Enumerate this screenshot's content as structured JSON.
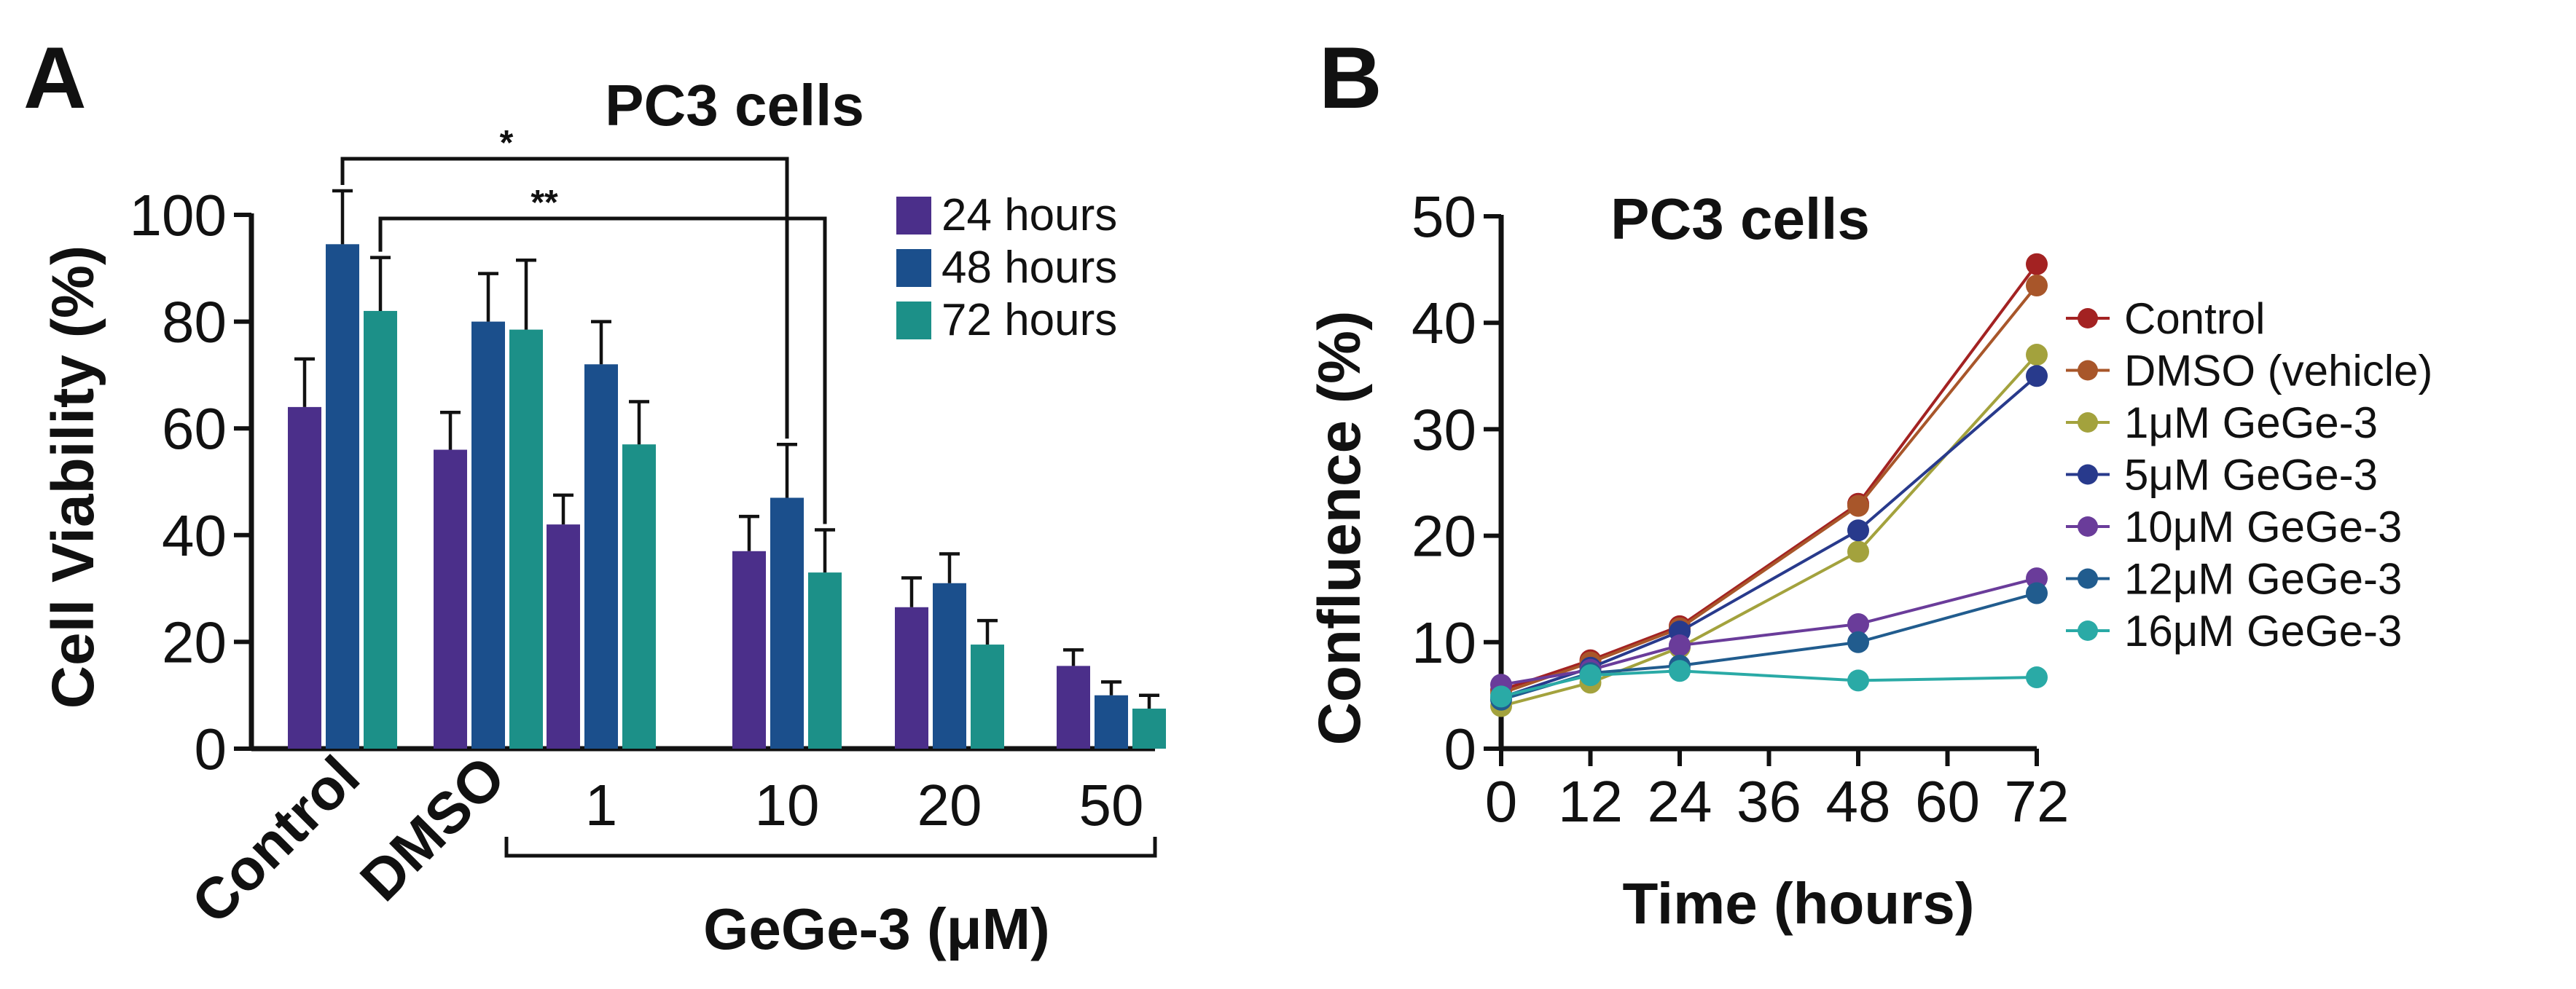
{
  "colors": {
    "h24": "#4B2F8A",
    "h48": "#1B4F8C",
    "h72": "#1C9088",
    "control": "#A32222",
    "dmso": "#A8562A",
    "c1": "#A3A23D",
    "c5": "#283A8C",
    "c10": "#6A3C9A",
    "c12": "#215C8E",
    "c16": "#2AAAA6"
  },
  "chart_data": [
    {
      "type": "bar",
      "panel_label": "A",
      "title": "PC3 cells",
      "xlabel": "GeGe-3 (μM)",
      "ylabel": "Cell Viability (%)",
      "ylim": [
        0,
        100
      ],
      "yticks": [
        "0",
        "20",
        "40",
        "60",
        "80",
        "100"
      ],
      "categories": [
        "Control",
        "DMSO",
        "1",
        "10",
        "20",
        "50"
      ],
      "legend_position": "top-right",
      "series": [
        {
          "name": "24 hours",
          "values": [
            64,
            56,
            42,
            37,
            26.5,
            15.5
          ],
          "errors": [
            9,
            7,
            5.5,
            6.5,
            5.5,
            3
          ],
          "color_key": "h24"
        },
        {
          "name": "48 hours",
          "values": [
            94.5,
            80,
            72,
            47,
            31,
            10
          ],
          "errors": [
            10,
            9,
            8,
            10,
            5.5,
            2.5
          ],
          "color_key": "h48"
        },
        {
          "name": "72 hours",
          "values": [
            82,
            78.5,
            57,
            33,
            19.5,
            7.5
          ],
          "errors": [
            10,
            13,
            8,
            8,
            4.5,
            2.5
          ],
          "color_key": "h72"
        }
      ],
      "significance": [
        {
          "label": "*",
          "from_category": "Control",
          "from_series": "48 hours",
          "to_category": "10",
          "to_series": "48 hours"
        },
        {
          "label": "**",
          "from_category": "Control",
          "from_series": "72 hours",
          "to_category": "10",
          "to_series": "72 hours"
        }
      ]
    },
    {
      "type": "line",
      "panel_label": "B",
      "title": "PC3 cells",
      "xlabel": "Time (hours)",
      "ylabel": "Confluence (%)",
      "xlim": [
        0,
        72
      ],
      "ylim": [
        0,
        50
      ],
      "xticks": [
        "0",
        "12",
        "24",
        "36",
        "48",
        "60",
        "72"
      ],
      "yticks": [
        "0",
        "10",
        "20",
        "30",
        "40",
        "50"
      ],
      "x": [
        0,
        12,
        24,
        48,
        72
      ],
      "legend_position": "right",
      "series": [
        {
          "name": "Control",
          "values": [
            5.5,
            8.3,
            11.5,
            23,
            45.5
          ],
          "color_key": "control"
        },
        {
          "name": "DMSO (vehicle)",
          "values": [
            5.2,
            8.1,
            11.3,
            22.8,
            43.5
          ],
          "color_key": "dmso"
        },
        {
          "name": "1μM GeGe-3",
          "values": [
            4,
            6.2,
            9.5,
            18.5,
            37
          ],
          "color_key": "c1"
        },
        {
          "name": "5μM GeGe-3",
          "values": [
            4.8,
            7.6,
            11,
            20.5,
            35
          ],
          "color_key": "c5"
        },
        {
          "name": "10μM GeGe-3",
          "values": [
            6,
            7.4,
            9.7,
            11.7,
            16
          ],
          "color_key": "c10"
        },
        {
          "name": "12μM GeGe-3",
          "values": [
            4.6,
            7.1,
            7.8,
            10,
            14.6
          ],
          "color_key": "c12"
        },
        {
          "name": "16μM GeGe-3",
          "values": [
            4.9,
            6.9,
            7.3,
            6.4,
            6.7
          ],
          "color_key": "c16"
        }
      ]
    }
  ]
}
